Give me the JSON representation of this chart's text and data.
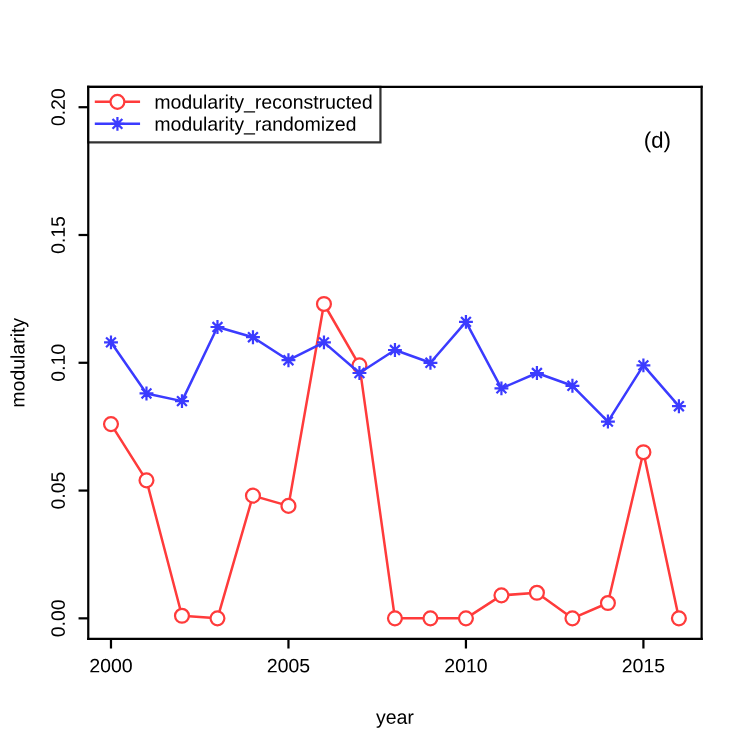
{
  "chart_data": {
    "type": "line",
    "xlabel": "year",
    "ylabel": "modularity",
    "annotations": [
      "(d)"
    ],
    "x": [
      2000,
      2001,
      2002,
      2003,
      2004,
      2005,
      2006,
      2007,
      2008,
      2009,
      2010,
      2011,
      2012,
      2013,
      2014,
      2015,
      2016
    ],
    "series": [
      {
        "name": "modularity_reconstructed",
        "color": "#ff3b3b",
        "marker": "circle",
        "values": [
          0.076,
          0.054,
          0.001,
          0.0,
          0.048,
          0.044,
          0.123,
          0.099,
          0.0,
          0.0,
          0.0,
          0.009,
          0.01,
          0.0,
          0.006,
          0.065,
          0.0
        ]
      },
      {
        "name": "modularity_randomized",
        "color": "#3b3bff",
        "marker": "star",
        "values": [
          0.108,
          0.088,
          0.085,
          0.114,
          0.11,
          0.101,
          0.108,
          0.096,
          0.105,
          0.1,
          0.116,
          0.09,
          0.096,
          0.091,
          0.077,
          0.099,
          0.083
        ]
      }
    ],
    "xlim": [
      1999.36,
      2016.64
    ],
    "ylim": [
      -0.008,
      0.208
    ],
    "xticks": [
      2000,
      2005,
      2010,
      2015
    ],
    "yticks": [
      {
        "value": 0,
        "label": "0.00"
      },
      {
        "value": 0.05,
        "label": "0.05"
      },
      {
        "value": 0.1,
        "label": "0.10"
      },
      {
        "value": 0.15,
        "label": "0.15"
      },
      {
        "value": 0.2,
        "label": "0.20"
      }
    ],
    "grid": false,
    "legend": "top left",
    "line_style": "solid"
  }
}
